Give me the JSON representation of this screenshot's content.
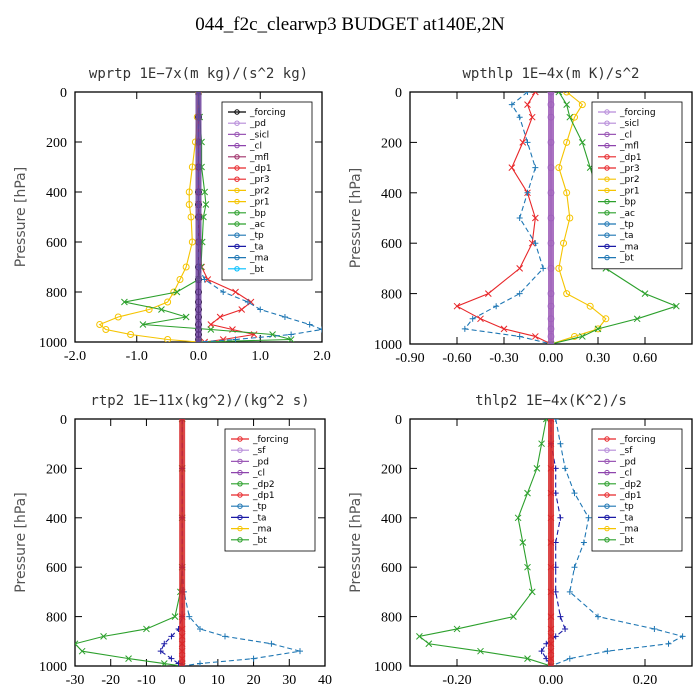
{
  "figure": {
    "title": "044_f2c_clearwp3  BUDGET at140E,2N"
  },
  "chart_data": [
    {
      "type": "line",
      "title": "wprtp  1E−7x(m kg)/(s^2 kg)",
      "ylabel": "Pressure [hPa]",
      "xlim": [
        -2.0,
        2.0
      ],
      "ylim": [
        1000,
        0
      ],
      "xticks": [
        "-2.0",
        "-1.0",
        "0.0",
        "1.0",
        "2.0"
      ],
      "yticks": [
        "0",
        "200",
        "400",
        "600",
        "800",
        "1000"
      ],
      "legend": [
        "_forcing",
        "_pd",
        "_sicl",
        "_cl",
        "_mfl",
        "_dp1",
        "_pr3",
        "_pr2",
        "_pr1",
        "_bp",
        "_ac",
        "_tp",
        "_ta",
        "_ma",
        "_bt"
      ],
      "legend_position": "top-right",
      "pressure": [
        0,
        100,
        200,
        300,
        400,
        450,
        500,
        600,
        700,
        750,
        800,
        840,
        870,
        900,
        930,
        950,
        970,
        990,
        1000
      ],
      "series": [
        {
          "name": "_forcing",
          "color": "#000000",
          "values": [
            0,
            0,
            0,
            0,
            0,
            0,
            0,
            0,
            0,
            0,
            0,
            0,
            0,
            0,
            0,
            0,
            0,
            0,
            0
          ]
        },
        {
          "name": "_dp1",
          "color": "#e8272a",
          "values": [
            0,
            0,
            0,
            0,
            0,
            0,
            0.01,
            0.02,
            0.05,
            0.15,
            0.6,
            0.85,
            0.7,
            0.35,
            0.2,
            0.55,
            0.9,
            0.4,
            0.1
          ]
        },
        {
          "name": "_pr2",
          "color": "#f5c400",
          "values": [
            0,
            -0.02,
            -0.05,
            -0.1,
            -0.15,
            -0.15,
            -0.12,
            -0.1,
            -0.2,
            -0.3,
            -0.4,
            -0.5,
            -0.8,
            -1.3,
            -1.6,
            -1.5,
            -1.1,
            -0.5,
            0
          ]
        },
        {
          "name": "_bp",
          "color": "#2ca02c",
          "values": [
            0,
            0.02,
            0.05,
            0.05,
            0.1,
            0.12,
            0.08,
            0.06,
            0.04,
            0,
            -0.35,
            -1.2,
            -0.6,
            -0.2,
            -0.9,
            0.2,
            1.2,
            1.5,
            0
          ]
        },
        {
          "name": "_tp",
          "color": "#1f77b4",
          "values": [
            0,
            0,
            0,
            0,
            0,
            0,
            0,
            0,
            0,
            0.1,
            0.4,
            0.8,
            1.0,
            1.4,
            1.8,
            2.0,
            1.5,
            0.6,
            0
          ]
        }
      ]
    },
    {
      "type": "line",
      "title": "wpthlp  1E−4x(m K)/s^2",
      "ylabel": "Pressure [hPa]",
      "xlim": [
        -0.9,
        0.9
      ],
      "ylim": [
        1000,
        0
      ],
      "xticks": [
        "-0.90",
        "-0.60",
        "-0.30",
        "0.00",
        "0.30",
        "0.60"
      ],
      "yticks": [
        "0",
        "200",
        "400",
        "600",
        "800",
        "1000"
      ],
      "legend": [
        "_forcing",
        "_sicl",
        "_cl",
        "_mfl",
        "_dp1",
        "_pr3",
        "_pr2",
        "_pr1",
        "_bp",
        "_ac",
        "_tp",
        "_ta",
        "_ma",
        "_bt"
      ],
      "legend_position": "top-right",
      "pressure": [
        0,
        50,
        100,
        200,
        300,
        400,
        500,
        600,
        700,
        800,
        850,
        900,
        940,
        970,
        1000
      ],
      "series": [
        {
          "name": "_forcing",
          "color": "#b68bd9",
          "values": [
            0,
            0,
            0,
            0,
            0,
            0,
            0,
            0,
            0,
            0,
            0,
            0,
            0,
            0,
            0
          ]
        },
        {
          "name": "_dp1",
          "color": "#e8272a",
          "values": [
            -0.1,
            -0.15,
            -0.12,
            -0.18,
            -0.25,
            -0.15,
            -0.1,
            -0.12,
            -0.2,
            -0.4,
            -0.6,
            -0.45,
            -0.3,
            -0.1,
            0
          ]
        },
        {
          "name": "_pr2",
          "color": "#f5c400",
          "values": [
            0.1,
            0.2,
            0.15,
            0.1,
            0.05,
            0.1,
            0.12,
            0.08,
            0.05,
            0.1,
            0.25,
            0.35,
            0.3,
            0.15,
            0
          ]
        },
        {
          "name": "_bp",
          "color": "#2ca02c",
          "values": [
            0.05,
            0.1,
            0.12,
            0.2,
            0.25,
            0.3,
            0.4,
            0.45,
            0.35,
            0.6,
            0.8,
            0.55,
            0.3,
            0.2,
            0
          ]
        },
        {
          "name": "_tp",
          "color": "#1f77b4",
          "values": [
            -0.15,
            -0.25,
            -0.2,
            -0.15,
            -0.1,
            -0.15,
            -0.2,
            -0.1,
            -0.05,
            -0.2,
            -0.35,
            -0.5,
            -0.55,
            -0.2,
            0
          ]
        }
      ]
    },
    {
      "type": "line",
      "title": "rtp2  1E−11x(kg^2)/(kg^2 s)",
      "ylabel": "Pressure [hPa]",
      "xlim": [
        -30,
        40
      ],
      "ylim": [
        1000,
        0
      ],
      "xticks": [
        "-30",
        "-20",
        "-10",
        "0",
        "10",
        "20",
        "30",
        "40"
      ],
      "yticks": [
        "0",
        "200",
        "400",
        "600",
        "800",
        "1000"
      ],
      "legend": [
        "_forcing",
        "_sf",
        "_pd",
        "_cl",
        "_dp2",
        "_dp1",
        "_tp",
        "_ta",
        "_ma",
        "_bt"
      ],
      "legend_position": "top-right",
      "pressure": [
        0,
        200,
        400,
        600,
        700,
        800,
        850,
        880,
        910,
        940,
        970,
        990,
        1000
      ],
      "series": [
        {
          "name": "_forcing",
          "color": "#e8272a",
          "values": [
            0,
            0,
            0,
            0,
            0,
            0,
            0,
            0,
            0,
            0,
            0,
            0,
            0
          ]
        },
        {
          "name": "_dp2",
          "color": "#2ca02c",
          "values": [
            0,
            0,
            0,
            0,
            -0.5,
            -2,
            -10,
            -22,
            -30,
            -28,
            -15,
            -5,
            0
          ]
        },
        {
          "name": "_tp",
          "color": "#1f77b4",
          "values": [
            0,
            0,
            0,
            0,
            0.5,
            2,
            5,
            12,
            25,
            33,
            20,
            5,
            0
          ]
        },
        {
          "name": "_ta",
          "color": "#1a1aa6",
          "values": [
            0,
            0,
            0,
            0,
            0,
            0,
            -1,
            -3,
            -5,
            -6,
            -3,
            -1,
            0
          ]
        }
      ]
    },
    {
      "type": "line",
      "title": "thlp2  1E−4x(K^2)/s",
      "ylabel": "Pressure [hPa]",
      "xlim": [
        -0.3,
        0.3
      ],
      "ylim": [
        1000,
        0
      ],
      "xticks": [
        "-0.20",
        "0.00",
        "0.20"
      ],
      "yticks": [
        "0",
        "200",
        "400",
        "600",
        "800",
        "1000"
      ],
      "legend": [
        "_forcing",
        "_sf",
        "_pd",
        "_cl",
        "_dp2",
        "_dp1",
        "_tp",
        "_ta",
        "_ma",
        "_bt"
      ],
      "legend_position": "top-right",
      "pressure": [
        0,
        100,
        200,
        300,
        400,
        500,
        600,
        700,
        800,
        850,
        880,
        910,
        940,
        970,
        1000
      ],
      "series": [
        {
          "name": "_forcing",
          "color": "#e8272a",
          "values": [
            0,
            0,
            0,
            0,
            0,
            0,
            0,
            0,
            0,
            0,
            0,
            0,
            0,
            0,
            0
          ]
        },
        {
          "name": "_dp2",
          "color": "#2ca02c",
          "values": [
            -0.01,
            -0.02,
            -0.03,
            -0.05,
            -0.07,
            -0.06,
            -0.05,
            -0.04,
            -0.08,
            -0.2,
            -0.28,
            -0.26,
            -0.15,
            -0.05,
            0
          ]
        },
        {
          "name": "_tp",
          "color": "#1f77b4",
          "values": [
            0.01,
            0.02,
            0.03,
            0.05,
            0.08,
            0.07,
            0.05,
            0.04,
            0.1,
            0.22,
            0.28,
            0.25,
            0.12,
            0.04,
            0
          ]
        },
        {
          "name": "_ta",
          "color": "#1a1aa6",
          "values": [
            0,
            0,
            0.01,
            0.01,
            0.02,
            0.01,
            0.01,
            0.01,
            0.02,
            0.03,
            0.01,
            -0.01,
            -0.02,
            -0.01,
            0
          ]
        }
      ]
    }
  ]
}
